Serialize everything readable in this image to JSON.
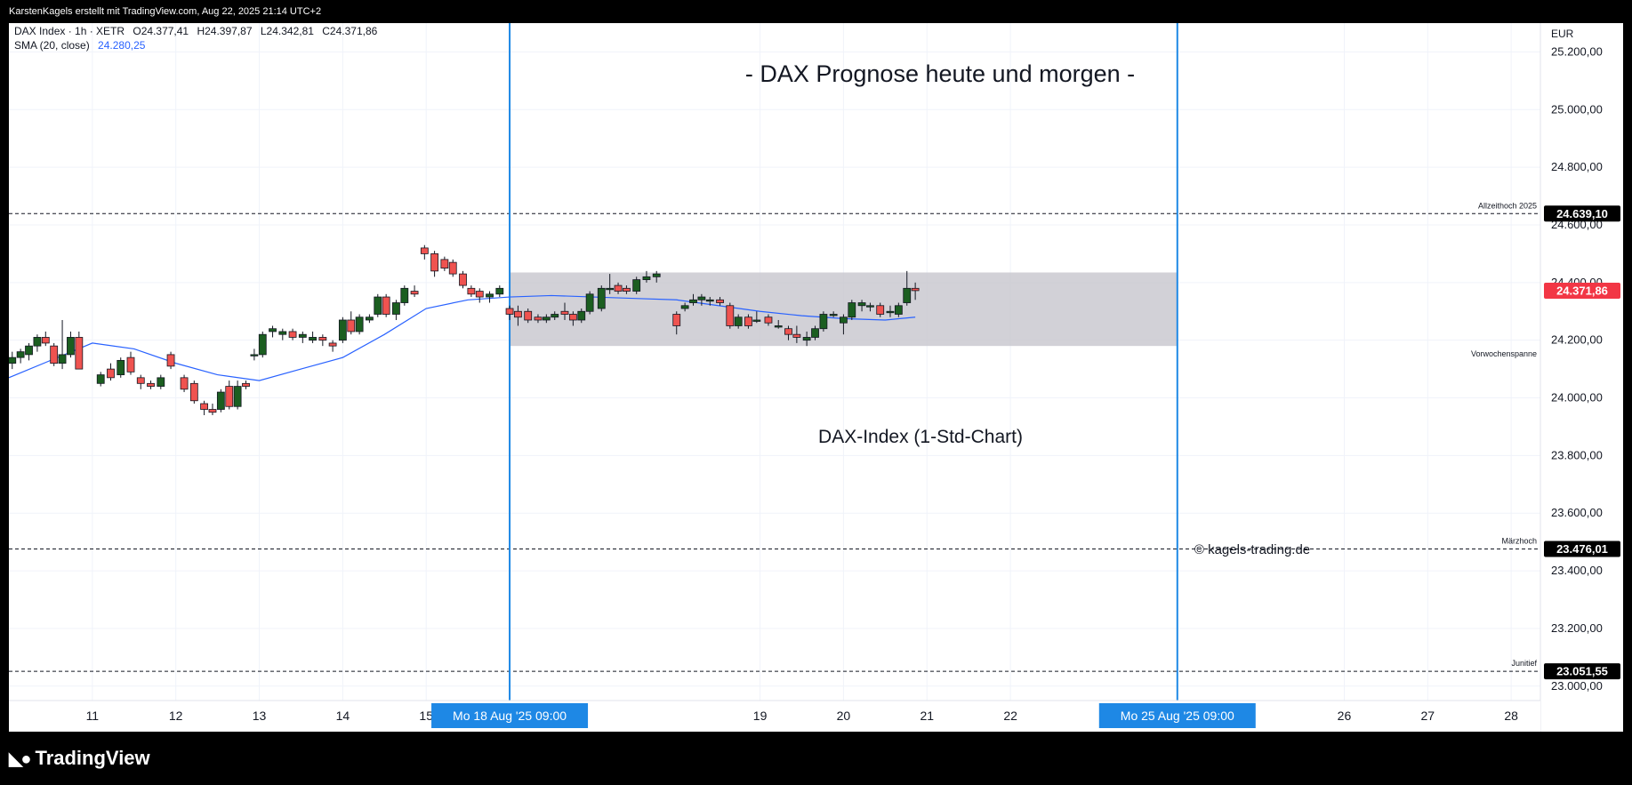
{
  "header": {
    "attribution": "KarstenKagels erstellt mit TradingView.com, Aug 22, 2025 21:14 UTC+2"
  },
  "footer": {
    "logo_text": "TradingView"
  },
  "legend": {
    "symbol_line": "DAX Index · 1h · XETR",
    "ohlc": {
      "o": "O24.377,41",
      "h": "H24.397,87",
      "l": "L24.342,81",
      "c": "C24.371,86"
    },
    "sma_label": "SMA (20, close)",
    "sma_value": "24.280,25"
  },
  "annotations": {
    "title": "- DAX Prognose heute und morgen -",
    "subtitle": "DAX-Index (1-Std-Chart)",
    "copyright": "© kagels-trading.de",
    "range_label": "Vorwochenspanne"
  },
  "colors": {
    "up": "#1b5e20",
    "down": "#ef5350",
    "sma": "#2962ff",
    "vline": "#1e88e5",
    "range": "#c7c6cd",
    "price_tag": "#f23645"
  },
  "chart_data": {
    "type": "candlestick",
    "currency": "EUR",
    "ylim": [
      22950,
      25300
    ],
    "y_ticks": [
      23000,
      23200,
      23400,
      23600,
      23800,
      24000,
      24200,
      24400,
      24600,
      24800,
      25000,
      25200
    ],
    "y_tick_labels": [
      "23.000,00",
      "23.200,00",
      "23.400,00",
      "23.600,00",
      "23.800,00",
      "24.000,00",
      "24.200,00",
      "24.400,00",
      "24.600,00",
      "24.800,00",
      "25.000,00",
      "25.200,00"
    ],
    "x_ticks": [
      {
        "label": "11",
        "x": 11.0
      },
      {
        "label": "12",
        "x": 12.0
      },
      {
        "label": "13",
        "x": 13.0
      },
      {
        "label": "14",
        "x": 14.0
      },
      {
        "label": "15",
        "x": 15.0
      },
      {
        "label": "19",
        "x": 19.0
      },
      {
        "label": "20",
        "x": 20.0
      },
      {
        "label": "21",
        "x": 21.0
      },
      {
        "label": "22",
        "x": 22.0
      },
      {
        "label": "26",
        "x": 26.0
      },
      {
        "label": "27",
        "x": 27.0
      },
      {
        "label": "28",
        "x": 28.0
      }
    ],
    "xlim": [
      10.0,
      28.35
    ],
    "vertical_markers": [
      {
        "x": 16.0,
        "label": "Mo 18 Aug '25   09:00"
      },
      {
        "x": 24.0,
        "label": "Mo 25 Aug '25   09:00"
      }
    ],
    "levels": [
      {
        "value": 24639.1,
        "label": "Allzeithoch 2025",
        "tag": "24.639,10"
      },
      {
        "value": 23476.01,
        "label": "Märzhoch",
        "tag": "23.476,01"
      },
      {
        "value": 23051.55,
        "label": "Junitief",
        "tag": "23.051,55"
      }
    ],
    "range_box": {
      "x_start": 16.0,
      "x_end": 24.0,
      "low": 24180,
      "high": 24435,
      "label": "Vorwochenspanne"
    },
    "last_price": {
      "value": 24371.86,
      "tag": "24.371,86"
    },
    "candles": [
      [
        10.04,
        24120,
        24160,
        24100,
        24140
      ],
      [
        10.14,
        24140,
        24170,
        24120,
        24160
      ],
      [
        10.24,
        24150,
        24190,
        24130,
        24180
      ],
      [
        10.34,
        24180,
        24220,
        24160,
        24210
      ],
      [
        10.44,
        24210,
        24230,
        24180,
        24190
      ],
      [
        10.54,
        24180,
        24190,
        24110,
        24120
      ],
      [
        10.64,
        24120,
        24270,
        24100,
        24150
      ],
      [
        10.74,
        24150,
        24230,
        24140,
        24210
      ],
      [
        10.84,
        24210,
        24230,
        24100,
        24100
      ],
      [
        11.1,
        24050,
        24090,
        24040,
        24080
      ],
      [
        11.22,
        24100,
        24120,
        24060,
        24070
      ],
      [
        11.34,
        24080,
        24140,
        24070,
        24130
      ],
      [
        11.46,
        24140,
        24160,
        24080,
        24090
      ],
      [
        11.58,
        24070,
        24080,
        24030,
        24050
      ],
      [
        11.7,
        24050,
        24060,
        24030,
        24040
      ],
      [
        11.82,
        24040,
        24080,
        24030,
        24070
      ],
      [
        11.94,
        24150,
        24160,
        24100,
        24110
      ],
      [
        12.1,
        24070,
        24080,
        24020,
        24030
      ],
      [
        12.22,
        24050,
        24060,
        23980,
        23990
      ],
      [
        12.34,
        23980,
        23990,
        23940,
        23960
      ],
      [
        12.44,
        23960,
        23980,
        23940,
        23950
      ],
      [
        12.54,
        23960,
        24030,
        23950,
        24020
      ],
      [
        12.64,
        24040,
        24060,
        23960,
        23970
      ],
      [
        12.74,
        23970,
        24060,
        23960,
        24040
      ],
      [
        12.84,
        24050,
        24060,
        24030,
        24040
      ],
      [
        12.94,
        24150,
        24170,
        24130,
        24150
      ],
      [
        13.04,
        24150,
        24230,
        24140,
        24220
      ],
      [
        13.16,
        24230,
        24250,
        24210,
        24240
      ],
      [
        13.28,
        24220,
        24240,
        24200,
        24230
      ],
      [
        13.4,
        24230,
        24240,
        24200,
        24210
      ],
      [
        13.52,
        24210,
        24230,
        24190,
        24220
      ],
      [
        13.64,
        24200,
        24230,
        24190,
        24210
      ],
      [
        13.76,
        24210,
        24220,
        24180,
        24200
      ],
      [
        13.88,
        24190,
        24200,
        24160,
        24180
      ],
      [
        14.0,
        24200,
        24280,
        24190,
        24270
      ],
      [
        14.1,
        24270,
        24300,
        24220,
        24230
      ],
      [
        14.2,
        24230,
        24290,
        24220,
        24280
      ],
      [
        14.32,
        24270,
        24290,
        24260,
        24280
      ],
      [
        14.42,
        24290,
        24360,
        24280,
        24350
      ],
      [
        14.52,
        24350,
        24360,
        24280,
        24290
      ],
      [
        14.64,
        24290,
        24340,
        24270,
        24330
      ],
      [
        14.74,
        24330,
        24390,
        24320,
        24380
      ],
      [
        14.86,
        24370,
        24390,
        24350,
        24360
      ],
      [
        14.98,
        24520,
        24530,
        24480,
        24500
      ],
      [
        15.1,
        24500,
        24510,
        24420,
        24440
      ],
      [
        15.22,
        24480,
        24490,
        24440,
        24450
      ],
      [
        15.32,
        24470,
        24480,
        24420,
        24430
      ],
      [
        15.44,
        24430,
        24440,
        24380,
        24390
      ],
      [
        15.54,
        24380,
        24390,
        24350,
        24360
      ],
      [
        15.64,
        24370,
        24380,
        24330,
        24350
      ],
      [
        15.76,
        24350,
        24370,
        24330,
        24360
      ],
      [
        15.88,
        24360,
        24390,
        24350,
        24380
      ],
      [
        16.0,
        24310,
        24320,
        24270,
        24290
      ],
      [
        16.1,
        24300,
        24320,
        24250,
        24280
      ],
      [
        16.22,
        24300,
        24310,
        24260,
        24270
      ],
      [
        16.34,
        24280,
        24290,
        24260,
        24270
      ],
      [
        16.44,
        24270,
        24290,
        24260,
        24280
      ],
      [
        16.54,
        24280,
        24300,
        24270,
        24290
      ],
      [
        16.66,
        24300,
        24330,
        24270,
        24290
      ],
      [
        16.76,
        24290,
        24300,
        24250,
        24270
      ],
      [
        16.86,
        24270,
        24310,
        24260,
        24300
      ],
      [
        16.96,
        24300,
        24370,
        24290,
        24360
      ],
      [
        17.1,
        24310,
        24390,
        24300,
        24380
      ],
      [
        17.2,
        24380,
        24430,
        24360,
        24380
      ],
      [
        17.3,
        24390,
        24400,
        24360,
        24370
      ],
      [
        17.4,
        24380,
        24390,
        24360,
        24370
      ],
      [
        17.52,
        24370,
        24420,
        24360,
        24410
      ],
      [
        17.64,
        24410,
        24440,
        24400,
        24420
      ],
      [
        17.76,
        24420,
        24440,
        24400,
        24430
      ],
      [
        18.0,
        24290,
        24300,
        24220,
        24250
      ],
      [
        18.1,
        24310,
        24330,
        24300,
        24320
      ],
      [
        18.2,
        24330,
        24360,
        24320,
        24340
      ],
      [
        18.3,
        24340,
        24360,
        24320,
        24350
      ],
      [
        18.4,
        24340,
        24350,
        24320,
        24340
      ],
      [
        18.52,
        24340,
        24350,
        24320,
        24330
      ],
      [
        18.64,
        24320,
        24330,
        24240,
        24250
      ],
      [
        18.74,
        24250,
        24290,
        24240,
        24280
      ],
      [
        18.86,
        24280,
        24290,
        24240,
        24250
      ],
      [
        18.96,
        24270,
        24300,
        24260,
        24270
      ],
      [
        19.1,
        24280,
        24290,
        24250,
        24260
      ],
      [
        19.22,
        24250,
        24270,
        24240,
        24250
      ],
      [
        19.34,
        24240,
        24250,
        24200,
        24220
      ],
      [
        19.44,
        24220,
        24250,
        24190,
        24210
      ],
      [
        19.56,
        24200,
        24230,
        24180,
        24210
      ],
      [
        19.66,
        24210,
        24250,
        24200,
        24240
      ],
      [
        19.76,
        24240,
        24300,
        24230,
        24290
      ],
      [
        19.88,
        24290,
        24300,
        24280,
        24290
      ],
      [
        20.0,
        24260,
        24290,
        24220,
        24280
      ],
      [
        20.1,
        24280,
        24340,
        24270,
        24330
      ],
      [
        20.22,
        24320,
        24340,
        24300,
        24330
      ],
      [
        20.32,
        24320,
        24330,
        24300,
        24320
      ],
      [
        20.44,
        24320,
        24330,
        24280,
        24290
      ],
      [
        20.56,
        24300,
        24320,
        24280,
        24300
      ],
      [
        20.66,
        24290,
        24330,
        24280,
        24320
      ],
      [
        20.76,
        24330,
        24440,
        24320,
        24380
      ],
      [
        20.86,
        24380,
        24400,
        24340,
        24372
      ]
    ],
    "sma": {
      "name": "SMA (20, close)",
      "x": [
        10.0,
        10.5,
        11.0,
        11.5,
        12.0,
        12.5,
        13.0,
        13.5,
        14.0,
        14.5,
        15.0,
        15.5,
        16.0,
        16.5,
        17.0,
        17.5,
        18.0,
        18.5,
        19.0,
        19.5,
        20.0,
        20.5,
        20.86
      ],
      "y": [
        24070,
        24130,
        24190,
        24170,
        24120,
        24080,
        24060,
        24100,
        24140,
        24220,
        24310,
        24340,
        24350,
        24355,
        24350,
        24345,
        24340,
        24320,
        24300,
        24285,
        24275,
        24270,
        24280
      ]
    }
  }
}
